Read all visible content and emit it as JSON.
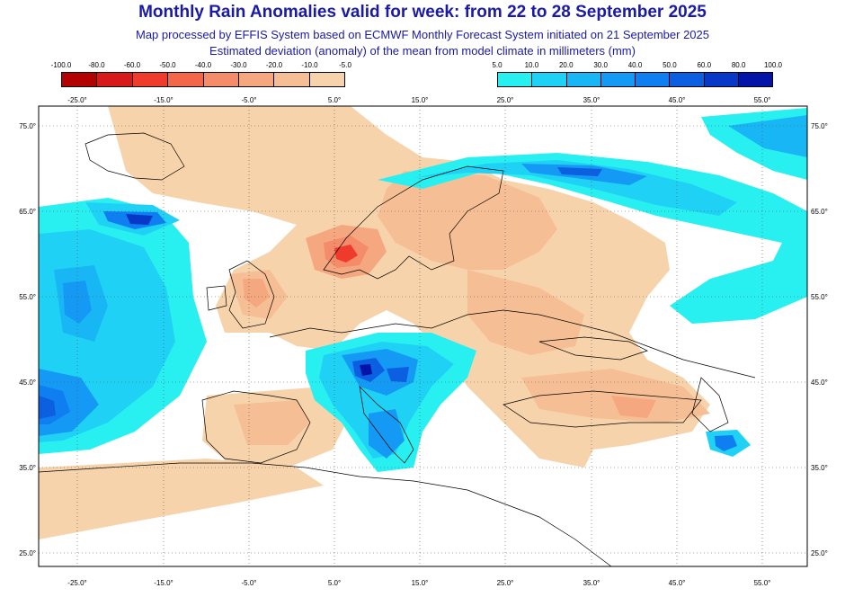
{
  "title": "Monthly Rain Anomalies valid for week: from 22 to 28 September 2025",
  "subtitle_1": "Map processed by EFFIS System based on ECMWF Monthly Forecast System initiated on 21 September 2025",
  "subtitle_2": "Estimated deviation (anomaly) of the mean from model climate in millimeters (mm)",
  "legend_negative": {
    "labels": [
      "-100.0",
      "-80.0",
      "-60.0",
      "-50.0",
      "-40.0",
      "-30.0",
      "-20.0",
      "-10.0",
      "-5.0"
    ],
    "colors": [
      "#b30000",
      "#d7191c",
      "#ef3b2c",
      "#f4664a",
      "#f48c6a",
      "#f5a77f",
      "#f6be95",
      "#f7d3ac"
    ]
  },
  "legend_positive": {
    "labels": [
      "5.0",
      "10.0",
      "20.0",
      "30.0",
      "40.0",
      "50.0",
      "60.0",
      "80.0",
      "100.0"
    ],
    "colors": [
      "#29f0f0",
      "#1fd2f5",
      "#19b6f5",
      "#149af5",
      "#0f7ef0",
      "#0b5fe0",
      "#0838c8",
      "#0514a8"
    ]
  },
  "axes": {
    "x_ticks": [
      "-25.0°",
      "-15.0°",
      "-5.0°",
      "5.0°",
      "15.0°",
      "25.0°",
      "35.0°",
      "45.0°",
      "55.0°"
    ],
    "y_ticks": [
      "75.0°",
      "65.0°",
      "55.0°",
      "45.0°",
      "35.0°",
      "25.0°"
    ]
  }
}
